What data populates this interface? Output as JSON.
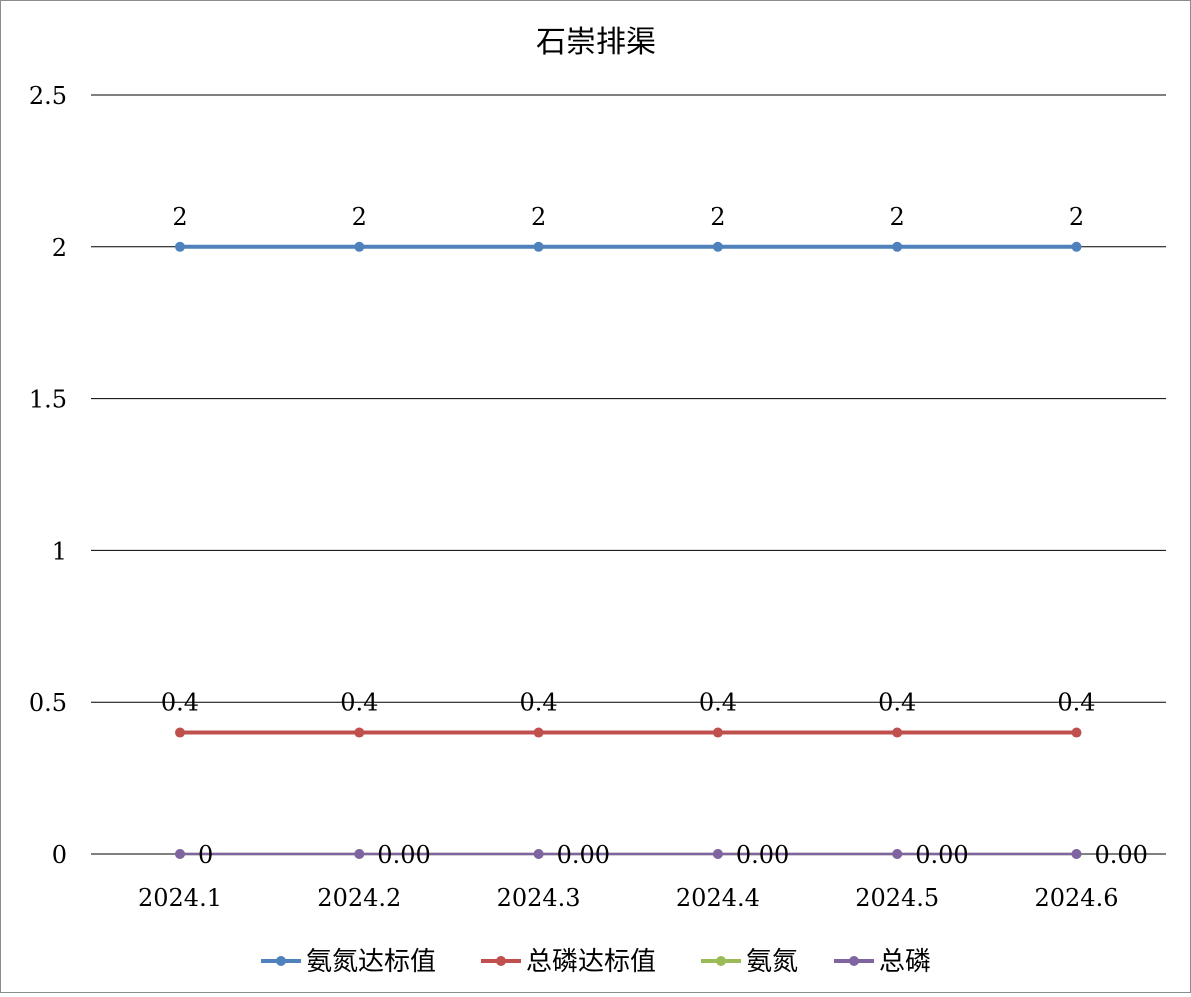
{
  "chart_data": {
    "type": "line",
    "title": "石崇排渠",
    "xlabel": "",
    "ylabel": "",
    "categories": [
      "2024.1",
      "2024.2",
      "2024.3",
      "2024.4",
      "2024.5",
      "2024.6"
    ],
    "ylim": [
      0,
      2.5
    ],
    "yticks": [
      0,
      0.5,
      1,
      1.5,
      2,
      2.5
    ],
    "ytick_labels": [
      "0",
      "0.5",
      "1",
      "1.5",
      "2",
      "2.5"
    ],
    "grid": true,
    "legend": "bottom",
    "series": [
      {
        "name": "氨氮达标值",
        "color": "#4f81bd",
        "values": [
          2,
          2,
          2,
          2,
          2,
          2
        ],
        "labels": [
          "2",
          "2",
          "2",
          "2",
          "2",
          "2"
        ],
        "label_position": "above"
      },
      {
        "name": "总磷达标值",
        "color": "#c0504d",
        "values": [
          0.4,
          0.4,
          0.4,
          0.4,
          0.4,
          0.4
        ],
        "labels": [
          "0.4",
          "0.4",
          "0.4",
          "0.4",
          "0.4",
          "0.4"
        ],
        "label_position": "above"
      },
      {
        "name": "氨氮",
        "color": "#9bbb59",
        "values": [
          0,
          0,
          0,
          0,
          0,
          0
        ],
        "labels": []
      },
      {
        "name": "总磷",
        "color": "#8064a2",
        "values": [
          0,
          0,
          0,
          0,
          0,
          0
        ],
        "labels": [
          "0",
          "0.00",
          "0.00",
          "0.00",
          "0.00",
          "0.00"
        ],
        "label_position": "right"
      }
    ]
  }
}
